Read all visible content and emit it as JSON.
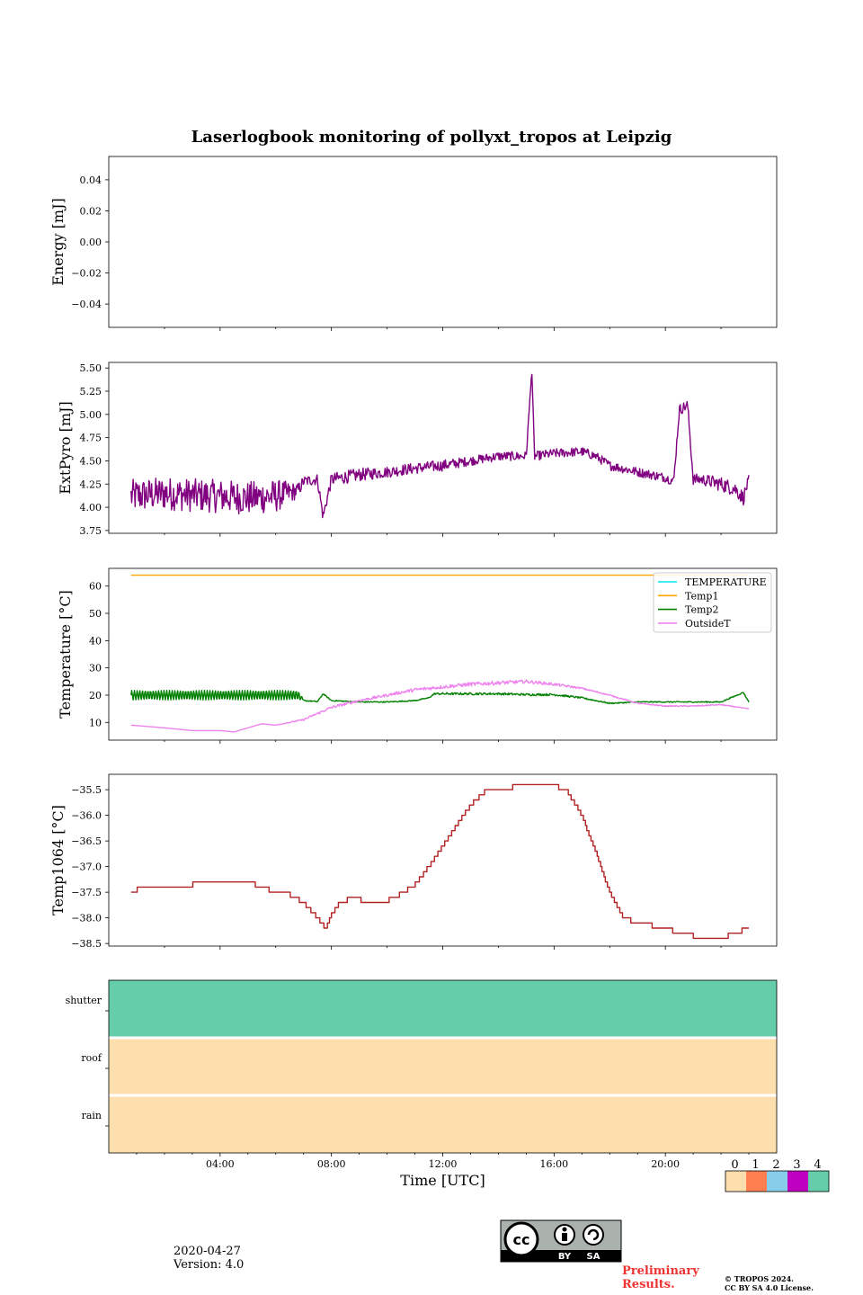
{
  "chart_data": [
    {
      "type": "line",
      "id": "energy",
      "title": "Laserlogbook monitoring of pollyxt_tropos at Leipzig",
      "ylabel": "Energy [mJ]",
      "ylim": [
        -0.055,
        0.055
      ],
      "yticks": [
        0.04,
        0.02,
        0.0,
        -0.02,
        -0.04
      ],
      "ytick_labels": [
        "0.04",
        "0.02",
        "0.00",
        "−0.02",
        "−0.04"
      ],
      "series": []
    },
    {
      "type": "line",
      "id": "extpyro",
      "ylabel": "ExtPyro [mJ]",
      "ylim": [
        3.72,
        5.56
      ],
      "yticks": [
        5.5,
        5.25,
        5.0,
        4.75,
        4.5,
        4.25,
        4.0,
        3.75
      ],
      "ytick_labels": [
        "5.50",
        "5.25",
        "5.00",
        "4.75",
        "4.50",
        "4.25",
        "4.00",
        "3.75"
      ],
      "series": [
        {
          "name": "ExtPyro",
          "color": "#800080",
          "x": [
            0.8,
            2,
            3,
            4,
            5,
            6,
            6.8,
            7,
            7.5,
            7.7,
            8,
            9,
            10,
            11,
            12,
            13,
            14,
            15,
            15.2,
            15.3,
            16,
            17,
            17.5,
            18,
            19,
            20,
            20.3,
            20.5,
            20.8,
            21,
            21.3,
            22,
            22.5,
            22.8,
            23
          ],
          "y": [
            4.12,
            4.15,
            4.13,
            4.12,
            4.1,
            4.12,
            4.18,
            4.28,
            4.3,
            3.9,
            4.3,
            4.35,
            4.38,
            4.42,
            4.45,
            4.5,
            4.55,
            4.55,
            5.48,
            4.55,
            4.58,
            4.6,
            4.55,
            4.45,
            4.38,
            4.32,
            4.28,
            5.05,
            5.1,
            4.3,
            4.3,
            4.25,
            4.2,
            4.1,
            4.3
          ],
          "noise": [
            0.18,
            0.18,
            0.18,
            0.18,
            0.18,
            0.18,
            0.08,
            0.06,
            0.06,
            0.06,
            0.07,
            0.07,
            0.06,
            0.06,
            0.06,
            0.05,
            0.05,
            0.05,
            0.0,
            0.05,
            0.05,
            0.05,
            0.05,
            0.05,
            0.05,
            0.05,
            0.05,
            0.06,
            0.06,
            0.06,
            0.06,
            0.08,
            0.08,
            0.08,
            0.05
          ]
        }
      ]
    },
    {
      "type": "line",
      "id": "temperature",
      "ylabel": "Temperature [°C]",
      "ylim": [
        3.5,
        66.5
      ],
      "yticks": [
        60,
        50,
        40,
        30,
        20,
        10
      ],
      "ytick_labels": [
        "60",
        "50",
        "40",
        "30",
        "20",
        "10"
      ],
      "legend_position": "upper right",
      "series": [
        {
          "name": "TEMPERATURE",
          "color": "#00e5ee",
          "x": [],
          "y": []
        },
        {
          "name": "Temp1",
          "color": "#ffa500",
          "x": [
            0.8,
            23
          ],
          "y": [
            64,
            64
          ]
        },
        {
          "name": "Temp2",
          "color": "#008000",
          "x": [
            0.8,
            6.8,
            7,
            7.3,
            7.5,
            7.7,
            8,
            9,
            10,
            11,
            11.5,
            11.7,
            12,
            13,
            14,
            15,
            16,
            17,
            18,
            19,
            20,
            21,
            22,
            22.8,
            23
          ],
          "y": [
            20,
            20,
            18,
            17.8,
            17.6,
            20.5,
            18,
            17.5,
            17.5,
            18,
            19,
            20.5,
            20.5,
            20.5,
            20.5,
            20.2,
            20.2,
            19,
            17,
            17.5,
            17.5,
            17.5,
            17.5,
            21,
            17.5
          ],
          "noise": [
            2.5,
            2.5,
            0.2,
            0.2,
            0.2,
            0.2,
            0.2,
            0.2,
            0.2,
            0.2,
            0.2,
            0.3,
            0.4,
            0.4,
            0.4,
            0.4,
            0.4,
            0.3,
            0.2,
            0.2,
            0.2,
            0.2,
            0.2,
            0.2,
            0.2
          ]
        },
        {
          "name": "OutsideT",
          "color": "#ee82ee",
          "x": [
            0.8,
            2,
            3,
            4,
            4.5,
            5,
            5.5,
            6,
            7,
            8,
            9,
            10,
            11,
            12,
            13,
            14,
            15,
            16,
            17,
            18,
            19,
            20,
            21,
            22,
            23
          ],
          "y": [
            9,
            8,
            7,
            7,
            6.5,
            8,
            9.5,
            9,
            11,
            15.5,
            18,
            20,
            22,
            23,
            24,
            24.5,
            25,
            24,
            22.5,
            20,
            17,
            16,
            16,
            16.5,
            15
          ],
          "noise": [
            0,
            0,
            0,
            0,
            0,
            0,
            0,
            0,
            0.3,
            0.5,
            0.5,
            0.5,
            0.6,
            0.6,
            0.7,
            0.7,
            0.6,
            0.5,
            0.3,
            0.2,
            0.2,
            0.2,
            0.2,
            0.2,
            0
          ]
        }
      ]
    },
    {
      "type": "line",
      "id": "temp1064",
      "ylabel": "Temp1064 [°C]",
      "ylim": [
        -38.55,
        -35.2
      ],
      "yticks": [
        -35.5,
        -36.0,
        -36.5,
        -37.0,
        -37.5,
        -38.0,
        -38.5
      ],
      "ytick_labels": [
        "−35.5",
        "−36.0",
        "−36.5",
        "−37.0",
        "−37.5",
        "−38.0",
        "−38.5"
      ],
      "series": [
        {
          "name": "Temp1064",
          "color": "#b22222",
          "x": [
            0.8,
            1,
            2,
            3,
            4,
            5,
            5.5,
            6,
            6.5,
            7,
            7.5,
            7.8,
            8,
            8.3,
            8.8,
            9.3,
            9.8,
            10.3,
            11,
            11.5,
            12,
            12.5,
            13,
            13.5,
            14,
            14.5,
            15,
            15.5,
            16,
            16.5,
            17,
            17.5,
            18,
            18.5,
            19,
            20,
            20.5,
            21,
            22,
            22.5,
            23
          ],
          "y": [
            -37.5,
            -37.45,
            -37.4,
            -37.35,
            -37.3,
            -37.3,
            -37.4,
            -37.5,
            -37.55,
            -37.7,
            -38.0,
            -38.2,
            -37.95,
            -37.7,
            -37.6,
            -37.7,
            -37.7,
            -37.6,
            -37.35,
            -37.0,
            -36.6,
            -36.2,
            -35.8,
            -35.55,
            -35.5,
            -35.45,
            -35.4,
            -35.4,
            -35.4,
            -35.55,
            -36.0,
            -36.7,
            -37.5,
            -38.0,
            -38.1,
            -38.2,
            -38.3,
            -38.35,
            -38.4,
            -38.3,
            -38.2
          ],
          "step": 0.1
        }
      ]
    },
    {
      "type": "heatmap",
      "id": "status",
      "rows": [
        "shutter",
        "roof",
        "rain"
      ],
      "row_values": [
        4,
        0,
        0
      ],
      "xlabel": "Time [UTC]",
      "xlim": [
        0,
        24
      ],
      "xticks": [
        4,
        8,
        12,
        16,
        20
      ],
      "xtick_labels": [
        "04:00",
        "08:00",
        "12:00",
        "16:00",
        "20:00"
      ],
      "colorbar": {
        "labels": [
          "0",
          "1",
          "2",
          "3",
          "4"
        ],
        "colors": [
          "#fddfae",
          "#ff7f50",
          "#87ceeb",
          "#c000c0",
          "#66cdaa"
        ]
      }
    }
  ],
  "footer": {
    "date": "2020-04-27",
    "version": "Version: 4.0",
    "license_badge": {
      "cc": "cc",
      "by": "BY",
      "sa": "SA"
    },
    "preliminary_1": "Preliminary",
    "preliminary_2": "Results.",
    "copyright_1": "© TROPOS 2024.",
    "copyright_2": "CC BY SA 4.0 License."
  }
}
